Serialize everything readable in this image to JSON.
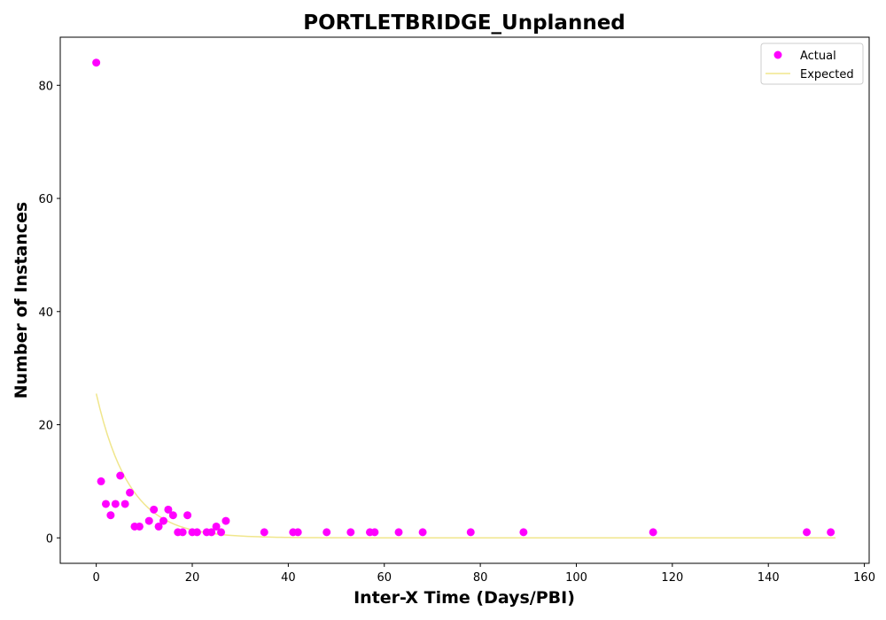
{
  "chart_data": {
    "type": "scatter",
    "title": "PORTLETBRIDGE_Unplanned",
    "xlabel": "Inter-X Time (Days/PBI)",
    "ylabel": "Number of Instances",
    "xlim": [
      -7.5,
      161
    ],
    "ylim": [
      -4.5,
      88.5
    ],
    "xticks": [
      0,
      20,
      40,
      60,
      80,
      100,
      120,
      140,
      160
    ],
    "yticks": [
      0,
      20,
      40,
      60,
      80
    ],
    "grid": false,
    "legend_position": "top-right",
    "series": [
      {
        "name": "Actual",
        "kind": "scatter",
        "color": "#ff00ff",
        "points": [
          [
            0,
            84
          ],
          [
            1,
            10
          ],
          [
            2,
            6
          ],
          [
            3,
            4
          ],
          [
            4,
            6
          ],
          [
            5,
            11
          ],
          [
            6,
            6
          ],
          [
            7,
            8
          ],
          [
            8,
            2
          ],
          [
            9,
            2
          ],
          [
            11,
            3
          ],
          [
            12,
            5
          ],
          [
            13,
            2
          ],
          [
            14,
            3
          ],
          [
            15,
            5
          ],
          [
            16,
            4
          ],
          [
            17,
            1
          ],
          [
            18,
            1
          ],
          [
            19,
            4
          ],
          [
            20,
            1
          ],
          [
            21,
            1
          ],
          [
            23,
            1
          ],
          [
            24,
            1
          ],
          [
            25,
            2
          ],
          [
            26,
            1
          ],
          [
            27,
            3
          ],
          [
            35,
            1
          ],
          [
            41,
            1
          ],
          [
            42,
            1
          ],
          [
            48,
            1
          ],
          [
            53,
            1
          ],
          [
            57,
            1
          ],
          [
            58,
            1
          ],
          [
            63,
            1
          ],
          [
            68,
            1
          ],
          [
            78,
            1
          ],
          [
            89,
            1
          ],
          [
            116,
            1
          ],
          [
            148,
            1
          ],
          [
            153,
            1
          ]
        ]
      },
      {
        "name": "Expected",
        "kind": "line",
        "color": "#f0e68c",
        "model": "exponential",
        "amplitude": 25.5,
        "rate": 0.145,
        "x_start": 0,
        "x_end": 154
      }
    ]
  }
}
